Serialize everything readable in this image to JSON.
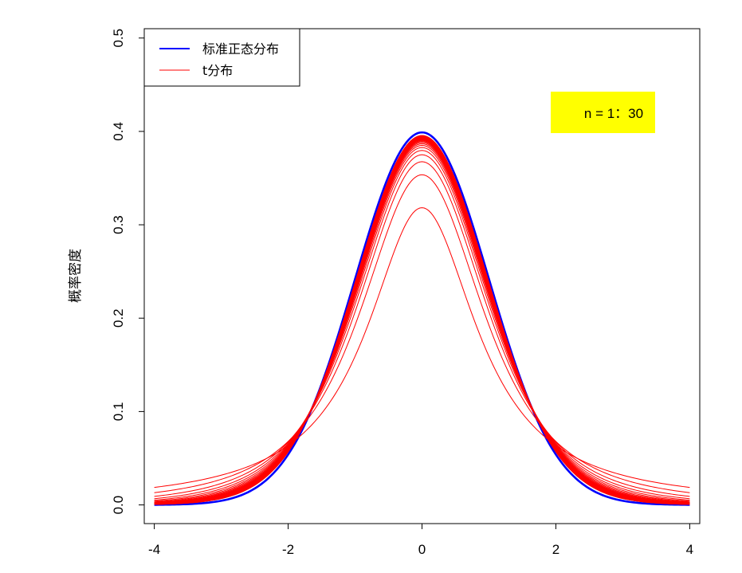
{
  "chart_data": {
    "type": "line",
    "title": "",
    "xlabel": "",
    "ylabel": "概率密度",
    "xlim": [
      -4.15,
      4.15
    ],
    "ylim": [
      -0.02,
      0.51
    ],
    "x_ticks": [
      -4,
      -2,
      0,
      2,
      4
    ],
    "x_tick_labels": [
      "-4",
      "-2",
      "0",
      "2",
      "4"
    ],
    "y_ticks": [
      0.0,
      0.1,
      0.2,
      0.3,
      0.4,
      0.5
    ],
    "y_tick_labels": [
      "0.0",
      "0.1",
      "0.2",
      "0.3",
      "0.4",
      "0.5"
    ],
    "x_range": [
      -4,
      4
    ],
    "series": [
      {
        "name": "标准正态分布",
        "color": "#0000ff",
        "kind": "normal"
      },
      {
        "name": "t分布",
        "color": "#ff0000",
        "kind": "t",
        "df": "1:30"
      }
    ],
    "legend": {
      "placement": "top-left",
      "entries": [
        {
          "label": "标准正态分布",
          "color": "#0000ff"
        },
        {
          "label": "t分布",
          "color": "#ff0000"
        }
      ]
    },
    "annotation": {
      "text": "n = 1：30",
      "background": "#ffff00",
      "placement": "top-right"
    }
  }
}
